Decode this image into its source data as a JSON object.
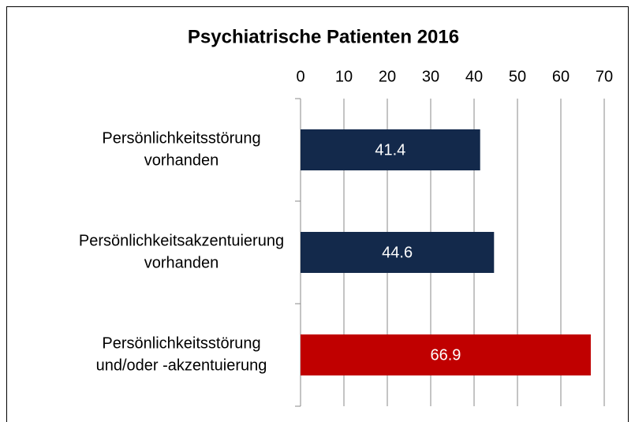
{
  "chart_data": {
    "type": "hbar",
    "title": "Psychiatrische Patienten 2016",
    "categories": [
      [
        "Persönlichkeitsstörung",
        "vorhanden"
      ],
      [
        "Persönlichkeitsakzentuierung",
        "vorhanden"
      ],
      [
        "Persönlichkeitsstörung",
        "und/oder -akzentuierung"
      ]
    ],
    "values": [
      41.4,
      44.6,
      66.9
    ],
    "colors": [
      "#13294b",
      "#13294b",
      "#c00000"
    ],
    "xlim": [
      0,
      70
    ],
    "xticks": [
      0,
      10,
      20,
      30,
      40,
      50,
      60,
      70
    ],
    "grid": true
  }
}
